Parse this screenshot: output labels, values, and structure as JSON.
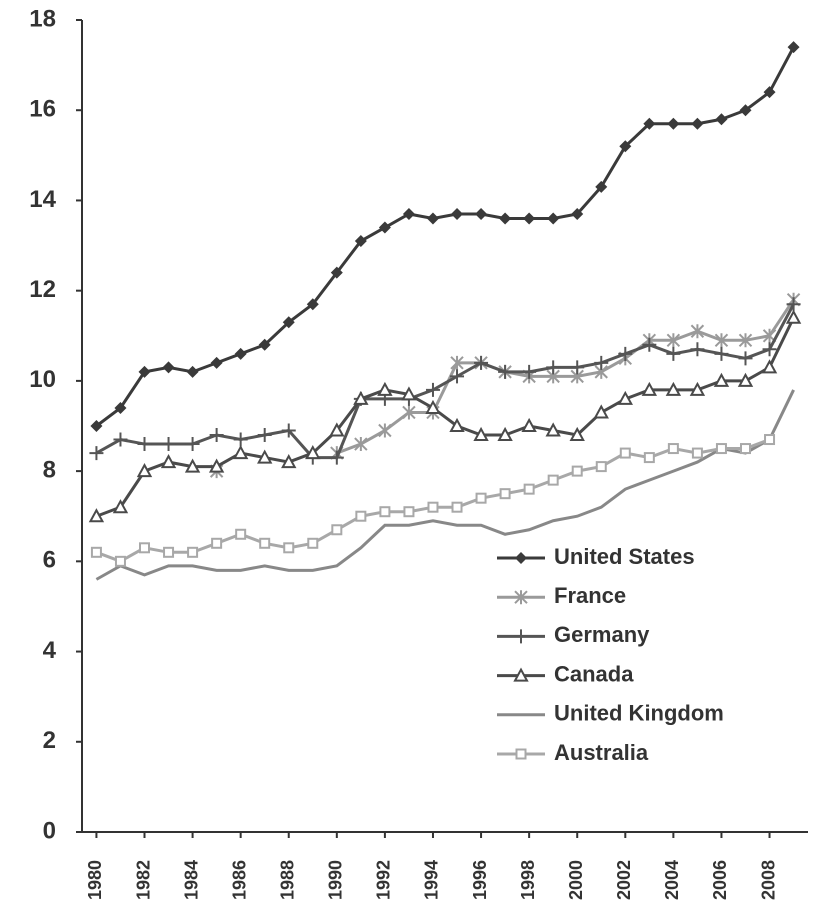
{
  "chart_data": {
    "type": "line",
    "x": [
      1980,
      1981,
      1982,
      1983,
      1984,
      1985,
      1986,
      1987,
      1988,
      1989,
      1990,
      1991,
      1992,
      1993,
      1994,
      1995,
      1996,
      1997,
      1998,
      1999,
      2000,
      2001,
      2002,
      2003,
      2004,
      2005,
      2006,
      2007,
      2008,
      2009
    ],
    "xlim": [
      1979.4,
      2009.6
    ],
    "xticks": [
      1980,
      1982,
      1984,
      1986,
      1988,
      1990,
      1992,
      1994,
      1996,
      1998,
      2000,
      2002,
      2004,
      2006,
      2008
    ],
    "ylim": [
      0,
      18
    ],
    "yticks": [
      0,
      2,
      4,
      6,
      8,
      10,
      12,
      14,
      16,
      18
    ],
    "legend": "lower right",
    "series": [
      {
        "name": "United States",
        "color": "#3a3a3a",
        "marker": "diamond",
        "values": [
          9.0,
          9.4,
          10.2,
          10.3,
          10.2,
          10.4,
          10.6,
          10.8,
          11.3,
          11.7,
          12.4,
          13.1,
          13.4,
          13.7,
          13.6,
          13.7,
          13.7,
          13.6,
          13.6,
          13.6,
          13.7,
          14.3,
          15.2,
          15.7,
          15.7,
          15.7,
          15.8,
          16.0,
          16.4,
          17.4
        ]
      },
      {
        "name": "France",
        "color": "#9a9a9a",
        "marker": "asterisk",
        "values": [
          null,
          null,
          null,
          null,
          null,
          8.0,
          null,
          null,
          null,
          null,
          8.4,
          8.6,
          8.9,
          9.3,
          9.3,
          10.4,
          10.4,
          10.2,
          10.1,
          10.1,
          10.1,
          10.2,
          10.5,
          10.9,
          10.9,
          11.1,
          10.9,
          10.9,
          11.0,
          11.8
        ]
      },
      {
        "name": "Germany",
        "color": "#555555",
        "marker": "plus",
        "values": [
          8.4,
          8.7,
          8.6,
          8.6,
          8.6,
          8.8,
          8.7,
          8.8,
          8.9,
          8.3,
          8.3,
          9.6,
          9.6,
          9.6,
          9.8,
          10.1,
          10.4,
          10.2,
          10.2,
          10.3,
          10.3,
          10.4,
          10.6,
          10.8,
          10.6,
          10.7,
          10.6,
          10.5,
          10.7,
          11.7
        ]
      },
      {
        "name": "Canada",
        "color": "#4a4a4a",
        "marker": "triangle",
        "values": [
          7.0,
          7.2,
          8.0,
          8.2,
          8.1,
          8.1,
          8.4,
          8.3,
          8.2,
          8.4,
          8.9,
          9.6,
          9.8,
          9.7,
          9.4,
          9.0,
          8.8,
          8.8,
          9.0,
          8.9,
          8.8,
          9.3,
          9.6,
          9.8,
          9.8,
          9.8,
          10.0,
          10.0,
          10.3,
          11.4
        ]
      },
      {
        "name": "United Kingdom",
        "color": "#888888",
        "marker": "none",
        "values": [
          5.6,
          5.9,
          5.7,
          5.9,
          5.9,
          5.8,
          5.8,
          5.9,
          5.8,
          5.8,
          5.9,
          6.3,
          6.8,
          6.8,
          6.9,
          6.8,
          6.8,
          6.6,
          6.7,
          6.9,
          7.0,
          7.2,
          7.6,
          7.8,
          8.0,
          8.2,
          8.5,
          8.4,
          8.7,
          9.8
        ]
      },
      {
        "name": "Australia",
        "color": "#a8a8a8",
        "marker": "square",
        "values": [
          6.2,
          6.0,
          6.3,
          6.2,
          6.2,
          6.4,
          6.6,
          6.4,
          6.3,
          6.4,
          6.7,
          7.0,
          7.1,
          7.1,
          7.2,
          7.2,
          7.4,
          7.5,
          7.6,
          7.8,
          8.0,
          8.1,
          8.4,
          8.3,
          8.5,
          8.4,
          8.5,
          8.5,
          8.7,
          null
        ]
      }
    ]
  }
}
